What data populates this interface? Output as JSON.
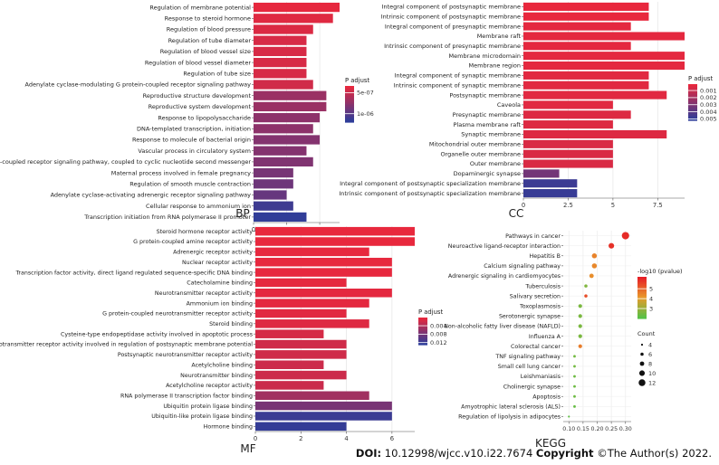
{
  "chart_data": [
    {
      "panel": "BP",
      "type": "bar",
      "orientation": "horizontal",
      "xlim": [
        0,
        13
      ],
      "xticks": [
        0,
        5,
        10
      ],
      "categories": [
        "Regulation of membrane potential",
        "Response to steroid hormone",
        "Regulation of blood pressure",
        "Regulation of tube diameter",
        "Regulation of blood vessel size",
        "Regulation of blood vessel diameter",
        "Regulation of tube size",
        "Adenylate cyclase-modulating G protein-coupled receptor signaling pathway",
        "Reproductive structure development",
        "Reproductive system development",
        "Response to lipopolysaccharide",
        "DNA-templated transcription, initiation",
        "Response to molecule of bacterial origin",
        "Vascular process in circulatory system",
        "G protein-coupled receptor signaling pathway, coupled to cyclic nucleotide second messenger",
        "Maternal process involved in female pregnancy",
        "Regulation of smooth muscle contraction",
        "Adenylate cyclase-activating adrenergic receptor signaling pathway",
        "Cellular response to ammonium ion",
        "Transcription initiation from RNA polymerase II promoter"
      ],
      "values": [
        13,
        12,
        9,
        8,
        8,
        8,
        8,
        9,
        11,
        11,
        10,
        9,
        10,
        8,
        9,
        6,
        6,
        5,
        6,
        8
      ],
      "p_adjust": [
        3.5e-07,
        3.8e-07,
        4e-07,
        4.2e-07,
        4.2e-07,
        4.2e-07,
        4.2e-07,
        4.5e-07,
        7e-07,
        7e-07,
        7.6e-07,
        7.6e-07,
        8e-07,
        8e-07,
        8.2e-07,
        8.6e-07,
        9e-07,
        9.4e-07,
        1.12e-06,
        1.18e-06
      ],
      "legend": {
        "title": "P adjust",
        "min": 3.4e-07,
        "max": 1.2e-06,
        "ticks": [
          5e-07,
          1e-06
        ],
        "tick_labels": [
          "5e-07",
          "1e-06"
        ]
      }
    },
    {
      "panel": "CC",
      "type": "bar",
      "orientation": "horizontal",
      "xlim": [
        0,
        9
      ],
      "xticks": [
        0,
        2.5,
        5,
        7.5
      ],
      "categories": [
        "Integral component of postsynaptic membrane",
        "Intrinsic component of postsynaptic membrane",
        "Integral component of presynaptic membrane",
        "Membrane raft",
        "Intrinsic component of presynaptic membrane",
        "Membrane microdomain",
        "Membrane region",
        "Integral component of synaptic membrane",
        "Intrinsic component of synaptic membrane",
        "Postsynaptic membrane",
        "Caveola",
        "Presynaptic membrane",
        "Plasma membrane raft",
        "Synaptic membrane",
        "Mitochondrial outer membrane",
        "Organelle outer membrane",
        "Outer membrane",
        "Dopaminergic synapse",
        "Integral component of postsynaptic specialization membrane",
        "Intrinsic component of postsynaptic specialization membrane"
      ],
      "values": [
        7,
        7,
        6,
        9,
        6,
        9,
        9,
        7,
        7,
        8,
        5,
        6,
        5,
        8,
        5,
        5,
        5,
        2,
        3,
        3
      ],
      "p_adjust": [
        0.0001,
        0.0001,
        0.0002,
        0.0002,
        0.0002,
        0.0002,
        0.0002,
        0.0003,
        0.0003,
        0.0003,
        0.0003,
        0.0004,
        0.0004,
        0.0004,
        0.0005,
        0.0005,
        0.0005,
        0.0033,
        0.0048,
        0.0049
      ],
      "legend": {
        "title": "P adjust",
        "min": 0.0001,
        "max": 0.0052,
        "ticks": [
          0.001,
          0.002,
          0.003,
          0.004,
          0.005
        ],
        "tick_labels": [
          "0.001",
          "0.002",
          "0.003",
          "0.004",
          "0.005"
        ]
      }
    },
    {
      "panel": "MF",
      "type": "bar",
      "orientation": "horizontal",
      "xlim": [
        0,
        7
      ],
      "xticks": [
        0,
        2,
        4,
        6
      ],
      "categories": [
        "Steroid hormone receptor activity",
        "G protein-coupled amine receptor activity",
        "Adrenergic receptor activity",
        "Nuclear receptor activity",
        "Transcription factor activity, direct ligand regulated sequence-specific DNA binding",
        "Catecholamine binding",
        "Neurotransmitter receptor activity",
        "Ammonium ion binding",
        "G protein-coupled neurotransmitter receptor activity",
        "Steroid binding",
        "Cysteine-type endopeptidase activity involved in apoptotic process",
        "Neurotransmitter receptor activity involved in regulation of postsynaptic membrane potential",
        "Postsynaptic neurotransmitter receptor activity",
        "Acetylcholine binding",
        "Neurotransmitter binding",
        "Acetylcholine receptor activity",
        "RNA polymerase II transcription factor binding",
        "Ubiquitin protein ligase binding",
        "Ubiquitin-like protein ligase binding",
        "Hormone binding"
      ],
      "values": [
        7,
        7,
        5,
        6,
        6,
        4,
        6,
        5,
        4,
        5,
        3,
        4,
        4,
        3,
        4,
        3,
        5,
        6,
        6,
        4
      ],
      "p_adjust": [
        0.0001,
        0.0001,
        0.0002,
        0.0002,
        0.0002,
        0.0003,
        0.0004,
        0.0004,
        0.0006,
        0.0008,
        0.0014,
        0.0018,
        0.0018,
        0.002,
        0.002,
        0.0022,
        0.005,
        0.0078,
        0.012,
        0.0125
      ],
      "legend": {
        "title": "P adjust",
        "min": 0.0001,
        "max": 0.013,
        "ticks": [
          0.004,
          0.008,
          0.012
        ],
        "tick_labels": [
          "0.004",
          "0.008",
          "0.012"
        ]
      }
    },
    {
      "panel": "KEGG",
      "type": "scatter",
      "xlim": [
        0.08,
        0.32
      ],
      "xticks": [
        0.1,
        0.15,
        0.2,
        0.25,
        0.3
      ],
      "xtick_labels": [
        "0.10",
        "0.15",
        "0.20",
        "0.25",
        "0.30"
      ],
      "categories": [
        "Pathways in cancer",
        "Neuroactive ligand-receptor interaction",
        "Hepatitis B",
        "Calcium signaling pathway",
        "Adrenergic signaling in cardiomyocytes",
        "Tuberculosis",
        "Salivary secretion",
        "Toxoplasmosis",
        "Serotonergic synapse",
        "Non-alcoholic fatty liver disease (NAFLD)",
        "Influenza A",
        "Colorectal cancer",
        "TNF signaling pathway",
        "Small cell lung cancer",
        "Leishmaniasis",
        "Cholinergic synapse",
        "Apoptosis",
        "Amyotrophic lateral sclerosis (ALS)",
        "Regulation of lipolysis in adipocytes"
      ],
      "gene_ratio": [
        0.3,
        0.25,
        0.19,
        0.19,
        0.18,
        0.16,
        0.16,
        0.14,
        0.14,
        0.14,
        0.14,
        0.14,
        0.12,
        0.12,
        0.12,
        0.12,
        0.12,
        0.12,
        0.1
      ],
      "neg_log10_pvalue": [
        6.0,
        5.9,
        4.5,
        4.4,
        4.3,
        2.6,
        5.4,
        2.5,
        2.5,
        2.5,
        2.5,
        4.6,
        2.4,
        2.4,
        2.3,
        2.3,
        2.3,
        2.2,
        2.1
      ],
      "count": [
        13,
        10,
        9,
        9,
        8,
        6,
        6,
        7,
        7,
        7,
        7,
        7,
        5,
        5,
        5,
        5,
        5,
        5,
        4
      ],
      "color_legend": {
        "title": "-log10 (pvalue)",
        "min": 2,
        "max": 6.2,
        "ticks": [
          3,
          4,
          5
        ],
        "tick_labels": [
          "3",
          "4",
          "5"
        ]
      },
      "size_legend": {
        "title": "Count",
        "values": [
          4,
          6,
          8,
          10,
          12
        ],
        "labels": [
          "4",
          "6",
          "8",
          "10",
          "12"
        ]
      }
    }
  ],
  "figure": {
    "panel_labels": {
      "bp": "BP",
      "cc": "CC",
      "mf": "MF",
      "kegg": "KEGG"
    },
    "colors": {
      "bar_high": "#e8283d",
      "bar_low": "#2d3d9a",
      "kegg_high": "#e61f27",
      "kegg_mid": "#e89a2c",
      "kegg_low": "#58c146"
    },
    "doi": {
      "doi_label": "DOI:",
      "doi_value": "10.12998/wjcc.v10.i22.7674",
      "copyright_label": "Copyright",
      "copyright_text": "©The Author(s) 2022."
    }
  }
}
